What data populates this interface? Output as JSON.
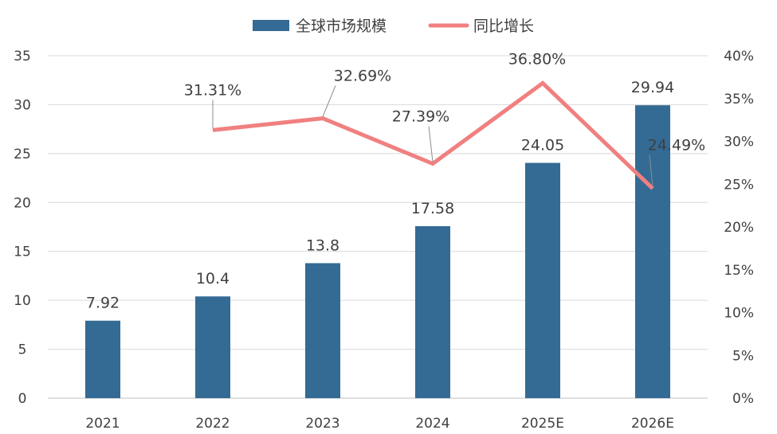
{
  "chart_data": {
    "type": "bar",
    "categories": [
      "2021",
      "2022",
      "2023",
      "2024",
      "2025E",
      "2026E"
    ],
    "series": [
      {
        "name": "全球市场规模",
        "type": "bar",
        "axis": "left",
        "color": "#336b94",
        "values": [
          7.92,
          10.4,
          13.8,
          17.58,
          24.05,
          29.94
        ],
        "labels": [
          "7.92",
          "10.4",
          "13.8",
          "17.58",
          "24.05",
          "29.94"
        ]
      },
      {
        "name": "同比增长",
        "type": "line",
        "axis": "right",
        "color": "#f08080",
        "values": [
          null,
          31.31,
          32.69,
          27.39,
          36.8,
          24.49
        ],
        "labels": [
          "",
          "31.31%",
          "32.69%",
          "27.39%",
          "36.80%",
          "24.49%"
        ]
      }
    ],
    "y_left": {
      "ylim": [
        0,
        35
      ],
      "ticks": [
        "0",
        "5",
        "10",
        "15",
        "20",
        "25",
        "30",
        "35"
      ]
    },
    "y_right": {
      "ylim": [
        0,
        40
      ],
      "ticks": [
        "0%",
        "5%",
        "10%",
        "15%",
        "20%",
        "25%",
        "30%",
        "35%",
        "40%"
      ]
    },
    "legend_position": "top-center",
    "grid": true
  }
}
